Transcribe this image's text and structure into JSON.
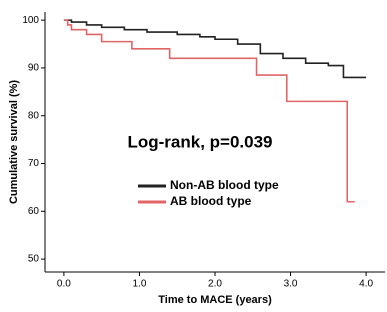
{
  "chart_data": {
    "type": "step",
    "annotation": "Log-rank, p=0.039",
    "x_label": "Time to MACE (years)",
    "y_label": "Cumulative survival (%)",
    "xlim": [
      -0.25,
      4.25
    ],
    "ylim": [
      47.3,
      101.7
    ],
    "xticks": [
      {
        "value": 0,
        "label": "0.0"
      },
      {
        "value": 1,
        "label": "1.0"
      },
      {
        "value": 2,
        "label": "2.0"
      },
      {
        "value": 3,
        "label": "3.0"
      },
      {
        "value": 4,
        "label": "4.0"
      }
    ],
    "yticks": [
      50,
      60,
      70,
      80,
      90,
      100
    ],
    "series": [
      {
        "name": "Non-AB blood type",
        "color": "#222222",
        "x": [
          0,
          0.1,
          0.3,
          0.5,
          0.8,
          1.1,
          1.5,
          1.8,
          2.0,
          2.3,
          2.6,
          2.9,
          3.2,
          3.5,
          3.7,
          4.0
        ],
        "values": [
          100,
          99.6,
          99.0,
          98.5,
          98.0,
          97.5,
          97.0,
          96.5,
          96.0,
          95.0,
          93.0,
          92.0,
          91.0,
          90.5,
          88.0,
          88.0
        ]
      },
      {
        "name": "AB blood type",
        "color": "#e06666",
        "x": [
          0,
          0.05,
          0.1,
          0.3,
          0.5,
          0.9,
          1.4,
          2.55,
          2.95,
          3.75,
          3.85
        ],
        "values": [
          100,
          99,
          98,
          97,
          95.5,
          94,
          92,
          88.5,
          83,
          62,
          62
        ]
      }
    ]
  }
}
